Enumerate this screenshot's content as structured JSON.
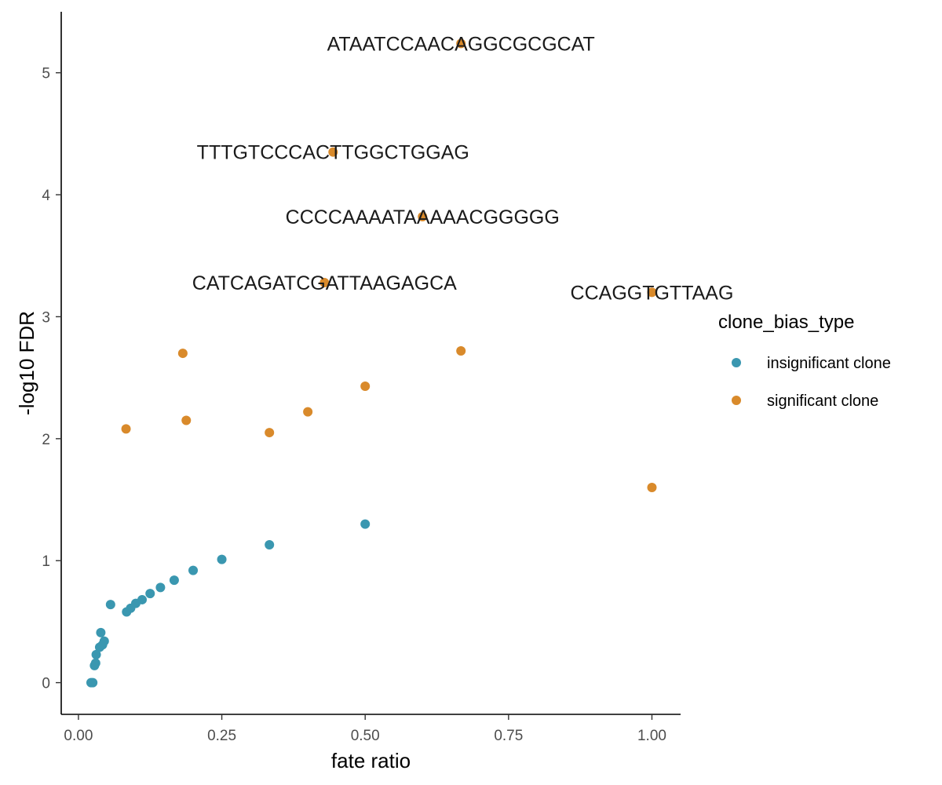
{
  "chart_data": {
    "type": "scatter",
    "xlabel": "fate ratio",
    "ylabel": "-log10 FDR",
    "xlim": [
      -0.03,
      1.05
    ],
    "ylim": [
      -0.26,
      5.5
    ],
    "x_ticks": [
      0,
      0.25,
      0.5,
      0.75,
      1
    ],
    "x_tick_labels": [
      "0.00",
      "0.25",
      "0.50",
      "0.75",
      "1.00"
    ],
    "y_ticks": [
      0,
      1,
      2,
      3,
      4,
      5
    ],
    "y_tick_labels": [
      "0",
      "1",
      "2",
      "3",
      "4",
      "5"
    ],
    "grid": false,
    "legend": {
      "title": "clone_bias_type",
      "placement": "right",
      "entries": [
        {
          "label": "insignificant clone",
          "color": "#3a97b0"
        },
        {
          "label": "significant clone",
          "color": "#d98a2b"
        }
      ]
    },
    "series": [
      {
        "name": "insignificant clone",
        "color": "#3a97b0",
        "points": [
          {
            "x": 0.022,
            "y": 0.0
          },
          {
            "x": 0.025,
            "y": 0.0
          },
          {
            "x": 0.028,
            "y": 0.14
          },
          {
            "x": 0.03,
            "y": 0.16
          },
          {
            "x": 0.031,
            "y": 0.23
          },
          {
            "x": 0.037,
            "y": 0.29
          },
          {
            "x": 0.039,
            "y": 0.41
          },
          {
            "x": 0.042,
            "y": 0.31
          },
          {
            "x": 0.045,
            "y": 0.34
          },
          {
            "x": 0.056,
            "y": 0.64
          },
          {
            "x": 0.084,
            "y": 0.58
          },
          {
            "x": 0.091,
            "y": 0.61
          },
          {
            "x": 0.1,
            "y": 0.65
          },
          {
            "x": 0.111,
            "y": 0.68
          },
          {
            "x": 0.125,
            "y": 0.73
          },
          {
            "x": 0.143,
            "y": 0.78
          },
          {
            "x": 0.167,
            "y": 0.84
          },
          {
            "x": 0.2,
            "y": 0.92
          },
          {
            "x": 0.25,
            "y": 1.01
          },
          {
            "x": 0.333,
            "y": 1.13
          },
          {
            "x": 0.5,
            "y": 1.3
          }
        ]
      },
      {
        "name": "significant clone",
        "color": "#d98a2b",
        "points": [
          {
            "x": 0.667,
            "y": 5.24,
            "label": "ATAATCCAACAGGCGCGCAT"
          },
          {
            "x": 0.444,
            "y": 4.35,
            "label": "TTTGTCCCACTTGGCTGGAG"
          },
          {
            "x": 0.6,
            "y": 3.82,
            "label": "CCCCAAAATAAAAACGGGGG"
          },
          {
            "x": 0.429,
            "y": 3.28,
            "label": "CATCAGATCGATTAAGAGCA"
          },
          {
            "x": 1.0,
            "y": 3.2,
            "label": "CCAGGTGTTAAG"
          },
          {
            "x": 0.182,
            "y": 2.7
          },
          {
            "x": 0.667,
            "y": 2.72
          },
          {
            "x": 0.5,
            "y": 2.43
          },
          {
            "x": 0.4,
            "y": 2.22
          },
          {
            "x": 0.188,
            "y": 2.15
          },
          {
            "x": 0.083,
            "y": 2.08
          },
          {
            "x": 0.333,
            "y": 2.05
          },
          {
            "x": 1.0,
            "y": 1.6
          }
        ]
      }
    ]
  }
}
